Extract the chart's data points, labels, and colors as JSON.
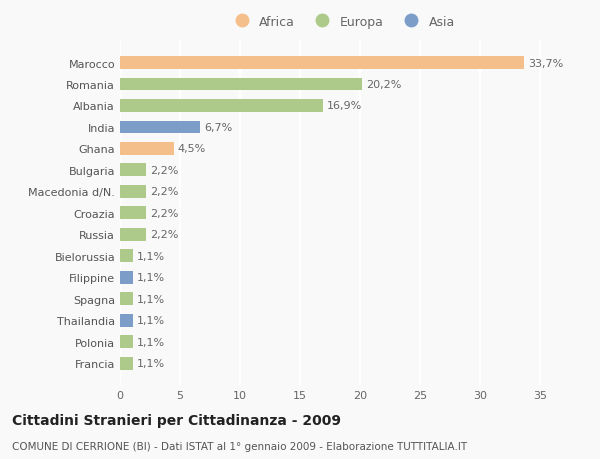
{
  "countries": [
    "Francia",
    "Polonia",
    "Thailandia",
    "Spagna",
    "Filippine",
    "Bielorussia",
    "Russia",
    "Croazia",
    "Macedonia d/N.",
    "Bulgaria",
    "Ghana",
    "India",
    "Albania",
    "Romania",
    "Marocco"
  ],
  "values": [
    1.1,
    1.1,
    1.1,
    1.1,
    1.1,
    1.1,
    2.2,
    2.2,
    2.2,
    2.2,
    4.5,
    6.7,
    16.9,
    20.2,
    33.7
  ],
  "continents": [
    "Europa",
    "Europa",
    "Asia",
    "Europa",
    "Asia",
    "Europa",
    "Europa",
    "Europa",
    "Europa",
    "Europa",
    "Africa",
    "Asia",
    "Europa",
    "Europa",
    "Africa"
  ],
  "labels": [
    "1,1%",
    "1,1%",
    "1,1%",
    "1,1%",
    "1,1%",
    "1,1%",
    "2,2%",
    "2,2%",
    "2,2%",
    "2,2%",
    "4,5%",
    "6,7%",
    "16,9%",
    "20,2%",
    "33,7%"
  ],
  "colors": {
    "Africa": "#F4BF8B",
    "Europa": "#AECA8A",
    "Asia": "#7B9DC8"
  },
  "xlim": [
    0,
    37
  ],
  "xticks": [
    0,
    5,
    10,
    15,
    20,
    25,
    30,
    35
  ],
  "title": "Cittadini Stranieri per Cittadinanza - 2009",
  "subtitle": "COMUNE DI CERRIONE (BI) - Dati ISTAT al 1° gennaio 2009 - Elaborazione TUTTITALIA.IT",
  "background_color": "#f9f9f9",
  "bar_height": 0.6,
  "label_fontsize": 8,
  "ytick_fontsize": 8,
  "xtick_fontsize": 8,
  "title_fontsize": 10,
  "subtitle_fontsize": 7.5,
  "legend_fontsize": 9
}
